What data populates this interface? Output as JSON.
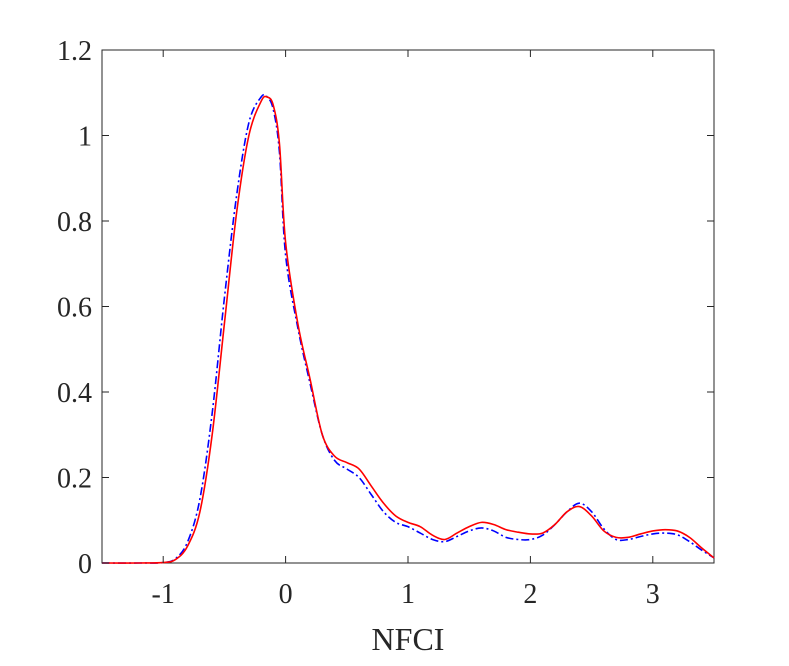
{
  "chart_data": {
    "type": "line",
    "title": "",
    "xlabel": "NFCI",
    "ylabel": "",
    "xlim": [
      -1.5,
      3.5
    ],
    "ylim": [
      0,
      1.2
    ],
    "xticks": [
      -1,
      0,
      1,
      2,
      3
    ],
    "xtick_labels": [
      "-1",
      "0",
      "1",
      "2",
      "3"
    ],
    "yticks": [
      0,
      0.2,
      0.4,
      0.6,
      0.8,
      1,
      1.2
    ],
    "ytick_labels": [
      "0",
      "0.2",
      "0.4",
      "0.6",
      "0.8",
      "1",
      "1.2"
    ],
    "grid": false,
    "box": true,
    "series": [
      {
        "color": "#0000ff",
        "style": "dashdot",
        "x": [
          -1.5,
          -1.2,
          -1.0,
          -0.9,
          -0.8,
          -0.7,
          -0.6,
          -0.5,
          -0.4,
          -0.3,
          -0.2,
          -0.15,
          -0.1,
          -0.05,
          0.0,
          0.1,
          0.2,
          0.3,
          0.4,
          0.5,
          0.6,
          0.7,
          0.8,
          0.9,
          1.0,
          1.1,
          1.2,
          1.3,
          1.4,
          1.5,
          1.6,
          1.7,
          1.8,
          1.9,
          2.0,
          2.1,
          2.2,
          2.3,
          2.4,
          2.5,
          2.6,
          2.7,
          2.8,
          2.9,
          3.0,
          3.1,
          3.2,
          3.3,
          3.4,
          3.5
        ],
        "y": [
          0.0,
          0.0,
          0.001,
          0.01,
          0.05,
          0.15,
          0.35,
          0.62,
          0.86,
          1.03,
          1.09,
          1.09,
          1.06,
          0.96,
          0.72,
          0.55,
          0.42,
          0.3,
          0.24,
          0.22,
          0.2,
          0.16,
          0.12,
          0.095,
          0.085,
          0.07,
          0.055,
          0.05,
          0.062,
          0.075,
          0.082,
          0.075,
          0.06,
          0.055,
          0.055,
          0.065,
          0.09,
          0.12,
          0.14,
          0.12,
          0.08,
          0.055,
          0.055,
          0.062,
          0.068,
          0.07,
          0.066,
          0.05,
          0.03,
          0.012
        ]
      },
      {
        "color": "#ff0000",
        "style": "solid",
        "x": [
          -1.5,
          -1.2,
          -1.0,
          -0.9,
          -0.8,
          -0.7,
          -0.6,
          -0.5,
          -0.4,
          -0.3,
          -0.2,
          -0.15,
          -0.1,
          -0.05,
          0.0,
          0.1,
          0.2,
          0.3,
          0.4,
          0.5,
          0.6,
          0.7,
          0.8,
          0.9,
          1.0,
          1.1,
          1.2,
          1.3,
          1.4,
          1.5,
          1.6,
          1.7,
          1.8,
          1.9,
          2.0,
          2.1,
          2.2,
          2.3,
          2.4,
          2.5,
          2.6,
          2.7,
          2.8,
          2.9,
          3.0,
          3.1,
          3.2,
          3.3,
          3.4,
          3.5
        ],
        "y": [
          0.0,
          0.0,
          0.001,
          0.008,
          0.04,
          0.12,
          0.3,
          0.56,
          0.82,
          1.0,
          1.08,
          1.09,
          1.07,
          0.98,
          0.75,
          0.56,
          0.43,
          0.3,
          0.25,
          0.235,
          0.22,
          0.18,
          0.14,
          0.11,
          0.095,
          0.085,
          0.065,
          0.055,
          0.07,
          0.085,
          0.095,
          0.09,
          0.078,
          0.072,
          0.068,
          0.07,
          0.09,
          0.12,
          0.132,
          0.11,
          0.075,
          0.06,
          0.06,
          0.068,
          0.075,
          0.078,
          0.075,
          0.06,
          0.035,
          0.012
        ]
      }
    ]
  }
}
